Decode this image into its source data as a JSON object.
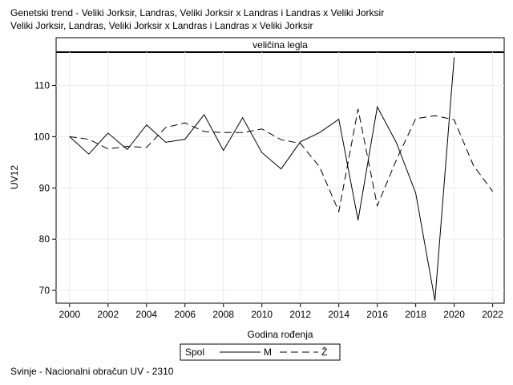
{
  "title_lines": [
    "Genetski trend - Veliki Jorksir, Landras, Veliki Jorksir x Landras i Landras x Veliki Jorksir",
    "Veliki Jorksir, Landras, Veliki Jorksir x Landras i Landras x Veliki Jorksir"
  ],
  "footnote": "Svinje - Nacionalni obračun UV - 2310",
  "chart_data": {
    "type": "line",
    "panel_title": "veličina legla",
    "xlabel": "Godina rođenja",
    "ylabel": "UV12",
    "xlim": [
      1999.3,
      2022.6
    ],
    "ylim": [
      67.5,
      116.5
    ],
    "xticks": [
      2000,
      2002,
      2004,
      2006,
      2008,
      2010,
      2012,
      2014,
      2016,
      2018,
      2020,
      2022
    ],
    "yticks": [
      70,
      80,
      90,
      100,
      110
    ],
    "grid": true,
    "legend": {
      "title": "Spol",
      "placement": "bottom-center",
      "entries": [
        "M",
        "Ž"
      ]
    },
    "series": [
      {
        "name": "M",
        "line_style": "solid",
        "color": "#000000",
        "x": [
          2000,
          2001,
          2002,
          2003,
          2004,
          2005,
          2006,
          2007,
          2008,
          2009,
          2010,
          2011,
          2012,
          2013,
          2014,
          2015,
          2016,
          2017,
          2018,
          2019,
          2020
        ],
        "y": [
          100.0,
          96.6,
          100.7,
          97.5,
          102.3,
          98.9,
          99.5,
          104.3,
          97.3,
          103.7,
          96.9,
          93.7,
          99.0,
          100.8,
          103.4,
          83.7,
          105.8,
          98.8,
          89.0,
          68.0,
          115.5
        ]
      },
      {
        "name": "Ž",
        "line_style": "dashed",
        "color": "#000000",
        "x": [
          2000,
          2001,
          2002,
          2003,
          2004,
          2005,
          2006,
          2007,
          2008,
          2009,
          2010,
          2011,
          2012,
          2013,
          2014,
          2015,
          2016,
          2017,
          2018,
          2019,
          2020,
          2021,
          2022
        ],
        "y": [
          100.0,
          99.5,
          97.6,
          98.1,
          97.9,
          101.8,
          102.7,
          101.0,
          100.8,
          100.8,
          101.5,
          99.4,
          98.7,
          94.1,
          85.4,
          105.4,
          86.5,
          95.5,
          103.5,
          104.1,
          103.3,
          94.4,
          89.3
        ]
      }
    ]
  }
}
